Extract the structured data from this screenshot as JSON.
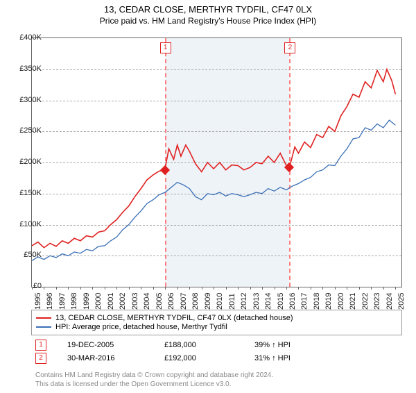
{
  "title_main": "13, CEDAR CLOSE, MERTHYR TYDFIL, CF47 0LX",
  "title_sub": "Price paid vs. HM Land Registry's House Price Index (HPI)",
  "chart": {
    "type": "line",
    "background_color": "#ffffff",
    "grid_color": "#aaaaaa",
    "border_color": "#666666",
    "x_years": [
      1995,
      1996,
      1997,
      1998,
      1999,
      2000,
      2001,
      2002,
      2003,
      2004,
      2005,
      2006,
      2007,
      2008,
      2009,
      2010,
      2011,
      2012,
      2013,
      2014,
      2015,
      2016,
      2017,
      2018,
      2019,
      2020,
      2021,
      2022,
      2023,
      2024,
      2025
    ],
    "xlim": [
      1995,
      2025.5
    ],
    "ylim": [
      0,
      400000
    ],
    "ytick_step": 50000,
    "ytick_labels": [
      "£0",
      "£50K",
      "£100K",
      "£150K",
      "£200K",
      "£250K",
      "£300K",
      "£350K",
      "£400K"
    ],
    "highlight_span": {
      "from_year": 2005.97,
      "to_year": 2016.25,
      "fill": "#eef3f8"
    },
    "vlines": [
      {
        "year": 2005.97,
        "color": "#ff8080",
        "label": "1"
      },
      {
        "year": 2016.25,
        "color": "#ff8080",
        "label": "2"
      }
    ],
    "sale_points": [
      {
        "year": 2005.97,
        "value": 188000,
        "color": "#e02020"
      },
      {
        "year": 2016.25,
        "value": 192000,
        "color": "#e02020"
      }
    ],
    "series": [
      {
        "name": "price_paid",
        "color": "#e02020",
        "line_width": 1.6,
        "points": [
          [
            1995,
            66000
          ],
          [
            1995.5,
            72000
          ],
          [
            1996,
            63000
          ],
          [
            1996.5,
            70000
          ],
          [
            1997,
            65000
          ],
          [
            1997.5,
            74000
          ],
          [
            1998,
            70000
          ],
          [
            1998.5,
            78000
          ],
          [
            1999,
            74000
          ],
          [
            1999.5,
            82000
          ],
          [
            2000,
            80000
          ],
          [
            2000.5,
            88000
          ],
          [
            2001,
            90000
          ],
          [
            2001.5,
            100000
          ],
          [
            2002,
            108000
          ],
          [
            2002.5,
            120000
          ],
          [
            2003,
            130000
          ],
          [
            2003.5,
            145000
          ],
          [
            2004,
            158000
          ],
          [
            2004.5,
            172000
          ],
          [
            2005,
            180000
          ],
          [
            2005.5,
            186000
          ],
          [
            2005.97,
            188000
          ],
          [
            2006.3,
            222000
          ],
          [
            2006.7,
            205000
          ],
          [
            2007,
            228000
          ],
          [
            2007.3,
            210000
          ],
          [
            2007.7,
            228000
          ],
          [
            2008,
            218000
          ],
          [
            2008.5,
            198000
          ],
          [
            2009,
            185000
          ],
          [
            2009.5,
            200000
          ],
          [
            2010,
            190000
          ],
          [
            2010.5,
            200000
          ],
          [
            2011,
            188000
          ],
          [
            2011.5,
            196000
          ],
          [
            2012,
            195000
          ],
          [
            2012.5,
            188000
          ],
          [
            2013,
            192000
          ],
          [
            2013.5,
            200000
          ],
          [
            2014,
            198000
          ],
          [
            2014.5,
            210000
          ],
          [
            2015,
            200000
          ],
          [
            2015.5,
            215000
          ],
          [
            2016,
            195000
          ],
          [
            2016.25,
            192000
          ],
          [
            2016.7,
            225000
          ],
          [
            2017,
            215000
          ],
          [
            2017.5,
            233000
          ],
          [
            2018,
            224000
          ],
          [
            2018.5,
            245000
          ],
          [
            2019,
            240000
          ],
          [
            2019.5,
            258000
          ],
          [
            2020,
            250000
          ],
          [
            2020.5,
            275000
          ],
          [
            2021,
            290000
          ],
          [
            2021.5,
            310000
          ],
          [
            2022,
            305000
          ],
          [
            2022.5,
            330000
          ],
          [
            2023,
            320000
          ],
          [
            2023.5,
            348000
          ],
          [
            2024,
            330000
          ],
          [
            2024.3,
            350000
          ],
          [
            2024.7,
            332000
          ],
          [
            2025,
            310000
          ]
        ]
      },
      {
        "name": "hpi",
        "color": "#3a6fb7",
        "line_width": 1.3,
        "points": [
          [
            1995,
            42000
          ],
          [
            1995.5,
            48000
          ],
          [
            1996,
            44000
          ],
          [
            1996.5,
            50000
          ],
          [
            1997,
            47000
          ],
          [
            1997.5,
            53000
          ],
          [
            1998,
            50000
          ],
          [
            1998.5,
            56000
          ],
          [
            1999,
            54000
          ],
          [
            1999.5,
            60000
          ],
          [
            2000,
            58000
          ],
          [
            2000.5,
            65000
          ],
          [
            2001,
            66000
          ],
          [
            2001.5,
            74000
          ],
          [
            2002,
            80000
          ],
          [
            2002.5,
            92000
          ],
          [
            2003,
            100000
          ],
          [
            2003.5,
            112000
          ],
          [
            2004,
            122000
          ],
          [
            2004.5,
            134000
          ],
          [
            2005,
            140000
          ],
          [
            2005.5,
            148000
          ],
          [
            2006,
            152000
          ],
          [
            2006.5,
            160000
          ],
          [
            2007,
            168000
          ],
          [
            2007.5,
            164000
          ],
          [
            2008,
            158000
          ],
          [
            2008.5,
            145000
          ],
          [
            2009,
            140000
          ],
          [
            2009.5,
            150000
          ],
          [
            2010,
            148000
          ],
          [
            2010.5,
            152000
          ],
          [
            2011,
            146000
          ],
          [
            2011.5,
            150000
          ],
          [
            2012,
            148000
          ],
          [
            2012.5,
            145000
          ],
          [
            2013,
            148000
          ],
          [
            2013.5,
            152000
          ],
          [
            2014,
            150000
          ],
          [
            2014.5,
            158000
          ],
          [
            2015,
            154000
          ],
          [
            2015.5,
            160000
          ],
          [
            2016,
            156000
          ],
          [
            2016.5,
            162000
          ],
          [
            2017,
            166000
          ],
          [
            2017.5,
            172000
          ],
          [
            2018,
            176000
          ],
          [
            2018.5,
            185000
          ],
          [
            2019,
            188000
          ],
          [
            2019.5,
            196000
          ],
          [
            2020,
            195000
          ],
          [
            2020.5,
            210000
          ],
          [
            2021,
            222000
          ],
          [
            2021.5,
            238000
          ],
          [
            2022,
            240000
          ],
          [
            2022.5,
            256000
          ],
          [
            2023,
            252000
          ],
          [
            2023.5,
            262000
          ],
          [
            2024,
            256000
          ],
          [
            2024.5,
            268000
          ],
          [
            2025,
            260000
          ]
        ]
      }
    ]
  },
  "legend": {
    "series1_color": "#e02020",
    "series1_label": "13, CEDAR CLOSE, MERTHYR TYDFIL, CF47 0LX (detached house)",
    "series2_color": "#3a6fb7",
    "series2_label": "HPI: Average price, detached house, Merthyr Tydfil"
  },
  "sales": [
    {
      "n": "1",
      "date": "19-DEC-2005",
      "price": "£188,000",
      "delta": "39% ↑ HPI"
    },
    {
      "n": "2",
      "date": "30-MAR-2016",
      "price": "£192,000",
      "delta": "31% ↑ HPI"
    }
  ],
  "footer_l1": "Contains HM Land Registry data © Crown copyright and database right 2024.",
  "footer_l2": "This data is licensed under the Open Government Licence v3.0."
}
